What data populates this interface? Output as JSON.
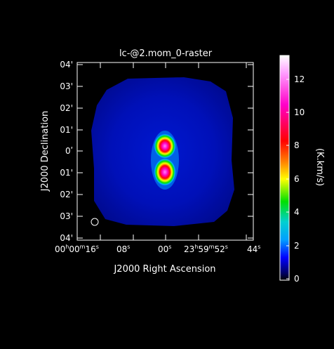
{
  "title": "lc-@2.mom_0-raster",
  "x_axis": {
    "label": "J2000 Right Ascension",
    "ticks": [
      {
        "h": "00",
        "hu": "h",
        "m": "00",
        "mu": "m",
        "s": "16",
        "su": "s"
      },
      {
        "s": "08",
        "su": "s"
      },
      {
        "s": "00",
        "su": "s"
      },
      {
        "h": "23",
        "hu": "h",
        "m": "59",
        "mu": "m",
        "s": "52",
        "su": "s"
      },
      {
        "s": "44",
        "su": "s"
      }
    ]
  },
  "y_axis": {
    "label": "J2000 Declination",
    "ticks": [
      "04'",
      "03'",
      "02'",
      "01'",
      "0ʹ",
      "01'",
      "02'",
      "03'",
      "04'"
    ]
  },
  "colorbar": {
    "label": "(K.km/s)",
    "ticks": [
      "0",
      "2",
      "4",
      "6",
      "8",
      "10",
      "12"
    ],
    "range": [
      0,
      13.5
    ],
    "stops": [
      "#ffffff",
      "#ff6eff",
      "#ff00c8",
      "#ff0000",
      "#ff8c00",
      "#ffff00",
      "#00e000",
      "#00d0d0",
      "#00a0ff",
      "#0000ff",
      "#000080",
      "#000000"
    ]
  },
  "beam": "circle"
}
